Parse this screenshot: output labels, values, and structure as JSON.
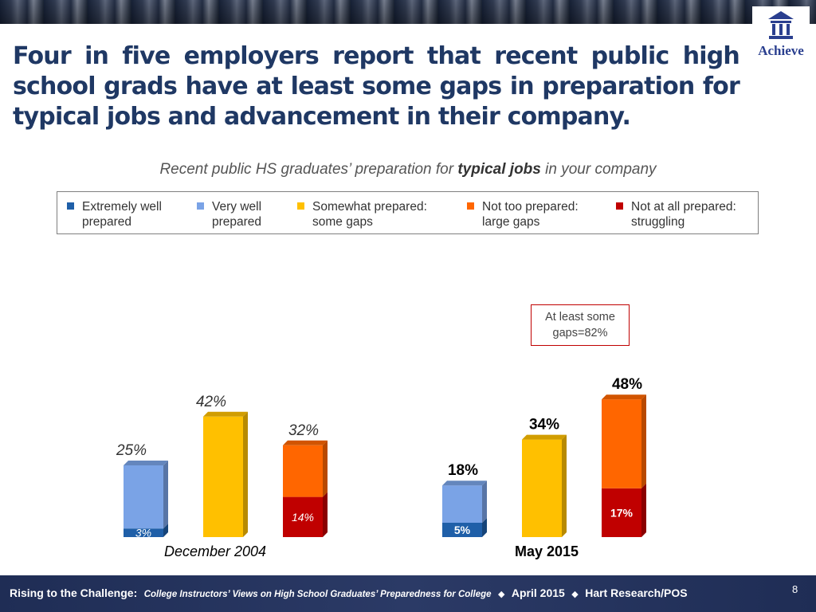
{
  "slide": {
    "title": "Four in five employers report that recent public high school grads have at least some gaps in preparation for typical jobs and advancement in their company.",
    "subtitle_pre": "Recent public HS graduates’ preparation for ",
    "subtitle_bold": "typical jobs",
    "subtitle_post": " in your company",
    "logo_text": "Achieve",
    "callout_line1": "At least some",
    "callout_line2": "gaps=82%",
    "footer_bold": "Rising to the Challenge:",
    "footer_italic": "College Instructors’ Views on High School Graduates’ Preparedness for College",
    "footer_sep": "◆",
    "footer_date": "April 2015",
    "footer_org": "Hart Research/POS",
    "page_number": "8"
  },
  "legend": [
    {
      "line1": "Extremely well",
      "line2": "prepared",
      "color": "#1f5fa8"
    },
    {
      "line1": "Very well",
      "line2": "prepared",
      "color": "#7aa3e6"
    },
    {
      "line1": "Somewhat prepared:",
      "line2": "some gaps",
      "color": "#ffc000"
    },
    {
      "line1": "Not too prepared:",
      "line2": "large gaps",
      "color": "#ff6600"
    },
    {
      "line1": "Not at all prepared:",
      "line2": "struggling",
      "color": "#c00000"
    }
  ],
  "chart_data": {
    "type": "bar",
    "stacked": true,
    "categories": [
      "December 2004",
      "May 2015"
    ],
    "groups": [
      {
        "label": "December 2004",
        "style": "italic",
        "bars": [
          {
            "total_label": "25%",
            "segments": [
              {
                "name": "Extremely well prepared",
                "value": 3,
                "label": "3%"
              },
              {
                "name": "Very well prepared",
                "value": 22,
                "label": ""
              }
            ]
          },
          {
            "total_label": "42%",
            "segments": [
              {
                "name": "Somewhat prepared: some gaps",
                "value": 42,
                "label": ""
              }
            ]
          },
          {
            "total_label": "32%",
            "segments": [
              {
                "name": "Not at all prepared: struggling",
                "value": 14,
                "label": "14%"
              },
              {
                "name": "Not too prepared: large gaps",
                "value": 18,
                "label": ""
              }
            ]
          }
        ]
      },
      {
        "label": "May 2015",
        "style": "bold",
        "bars": [
          {
            "total_label": "18%",
            "segments": [
              {
                "name": "Extremely well prepared",
                "value": 5,
                "label": "5%"
              },
              {
                "name": "Very well prepared",
                "value": 13,
                "label": ""
              }
            ]
          },
          {
            "total_label": "34%",
            "segments": [
              {
                "name": "Somewhat prepared: some gaps",
                "value": 34,
                "label": ""
              }
            ]
          },
          {
            "total_label": "48%",
            "segments": [
              {
                "name": "Not at all prepared: struggling",
                "value": 17,
                "label": "17%"
              },
              {
                "name": "Not too prepared: large gaps",
                "value": 31,
                "label": ""
              }
            ]
          }
        ]
      }
    ],
    "colors": {
      "Extremely well prepared": "#1f5fa8",
      "Very well prepared": "#7aa3e6",
      "Somewhat prepared: some gaps": "#ffc000",
      "Not too prepared: large gaps": "#ff6600",
      "Not at all prepared: struggling": "#c00000"
    }
  }
}
